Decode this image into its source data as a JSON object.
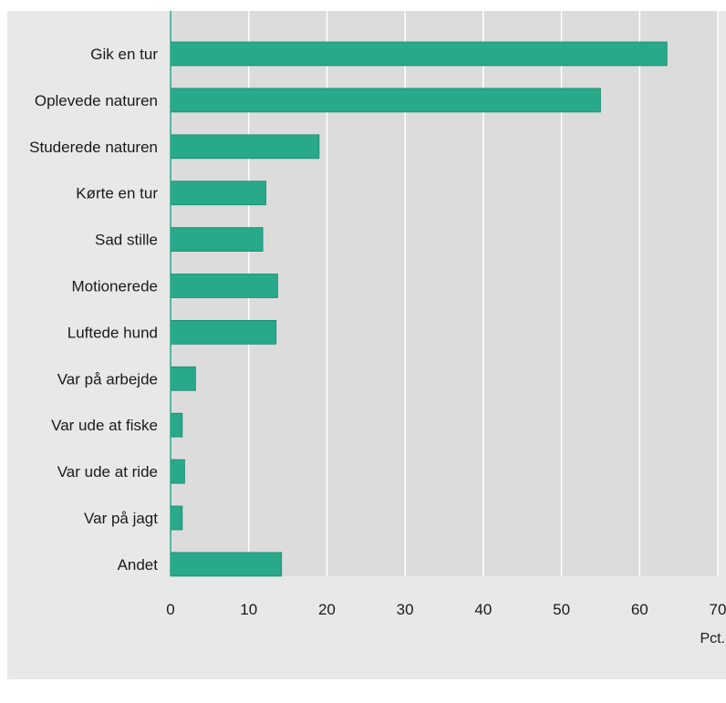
{
  "chart_data": {
    "type": "bar",
    "orientation": "horizontal",
    "categories": [
      "Gik en tur",
      "Oplevede naturen",
      "Studerede naturen",
      "Kørte en tur",
      "Sad stille",
      "Motionerede",
      "Luftede hund",
      "Var på arbejde",
      "Var ude at fiske",
      "Var ude at ride",
      "Var på jagt",
      "Andet"
    ],
    "values": [
      63.5,
      55.0,
      19.0,
      12.2,
      11.8,
      13.7,
      13.5,
      3.2,
      1.5,
      1.8,
      1.5,
      14.2
    ],
    "xlim": [
      0,
      70
    ],
    "xticks": [
      0,
      10,
      20,
      30,
      40,
      50,
      60,
      70
    ],
    "xlabel": "Pct.",
    "title": "",
    "grid": "vertical",
    "colors": {
      "bar": "#27a98a",
      "bar_edge": "#1d8a70",
      "plot_bg": "#dcdcdc",
      "panel_bg": "#e8e8e8",
      "gridline": "#ffffff",
      "axis": "#27a98a",
      "text": "#1a1a1a"
    }
  }
}
